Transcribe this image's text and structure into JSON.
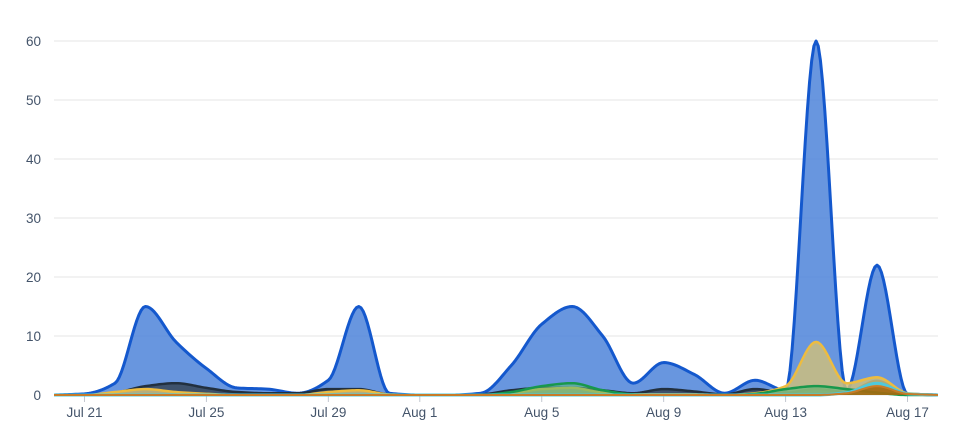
{
  "chart_data": {
    "type": "area",
    "title": "",
    "xlabel": "",
    "ylabel": "",
    "legend": "none",
    "grid": "horizontal",
    "background_color": "#ffffff",
    "gridline_color": "#e6e6e6",
    "tick_mark_color": "#c3c8d0",
    "axis_text_color": "#44546a",
    "ylim": [
      0,
      60
    ],
    "y_ticks": [
      0,
      10,
      20,
      30,
      40,
      50,
      60
    ],
    "x": [
      "Jul 20",
      "Jul 21",
      "Jul 22",
      "Jul 23",
      "Jul 24",
      "Jul 25",
      "Jul 26",
      "Jul 27",
      "Jul 28",
      "Jul 29",
      "Jul 30",
      "Jul 31",
      "Aug 1",
      "Aug 2",
      "Aug 3",
      "Aug 4",
      "Aug 5",
      "Aug 6",
      "Aug 7",
      "Aug 8",
      "Aug 9",
      "Aug 10",
      "Aug 11",
      "Aug 12",
      "Aug 13",
      "Aug 14",
      "Aug 15",
      "Aug 16",
      "Aug 17",
      "Aug 18"
    ],
    "x_tick_indices": [
      1,
      5,
      9,
      12,
      16,
      20,
      24,
      28
    ],
    "x_tick_labels": [
      "Jul 21",
      "Jul 25",
      "Jul 29",
      "Aug 1",
      "Aug 5",
      "Aug 9",
      "Aug 13",
      "Aug 17"
    ],
    "series": [
      {
        "name": "blue",
        "stroke": "#1458cd",
        "fill": "#4d84d9",
        "fill_opacity": 0.85,
        "stroke_width": 3,
        "values": [
          0,
          0.2,
          2,
          15,
          9,
          4.5,
          1.2,
          1,
          0.3,
          2.5,
          15,
          0.3,
          0,
          0,
          0.3,
          5,
          12,
          15,
          10,
          2,
          5.5,
          3.5,
          0.3,
          2.5,
          0.8,
          60,
          0.8,
          22,
          0.2,
          0
        ]
      },
      {
        "name": "dark-navy",
        "stroke": "#22303f",
        "fill": "#3a4a5f",
        "fill_opacity": 0.9,
        "stroke_width": 2.5,
        "values": [
          0,
          0,
          0.4,
          1.5,
          2,
          1.2,
          0.5,
          0.3,
          0.3,
          1,
          1,
          0.1,
          0,
          0,
          0.1,
          0.8,
          1.2,
          1.2,
          0.8,
          0.3,
          1,
          0.6,
          0.1,
          1,
          0.4,
          1,
          0.5,
          2.4,
          0.1,
          0
        ]
      },
      {
        "name": "gold",
        "stroke": "#edbc40",
        "fill": "#cdbe7e",
        "fill_opacity": 0.85,
        "stroke_width": 2.5,
        "values": [
          0,
          0,
          0.5,
          1,
          0.5,
          0.2,
          0,
          0,
          0,
          0.5,
          0.8,
          0.1,
          0,
          0,
          0,
          0.3,
          1,
          1.2,
          0.4,
          0.1,
          0.1,
          0.1,
          0,
          0.3,
          1.5,
          9,
          2,
          3,
          0.3,
          0
        ]
      },
      {
        "name": "green",
        "stroke": "#18984c",
        "fill": "#57b97a",
        "fill_opacity": 0.55,
        "stroke_width": 2.5,
        "values": [
          0,
          0,
          0,
          0,
          0,
          0,
          0,
          0,
          0,
          0,
          0,
          0,
          0,
          0,
          0,
          0.5,
          1.5,
          2,
          0.8,
          0.1,
          0,
          0,
          0,
          0.2,
          1,
          1.5,
          1,
          0.4,
          0,
          0
        ]
      },
      {
        "name": "cyan",
        "stroke": "#4ec9dd",
        "fill": "none",
        "fill_opacity": 0,
        "stroke_width": 3,
        "values": [
          0,
          0,
          0,
          0,
          0,
          0,
          0,
          0,
          0,
          0,
          0,
          0,
          0,
          0,
          0,
          0,
          0,
          0,
          0,
          0,
          0,
          0,
          0,
          0,
          0,
          0,
          0.4,
          2,
          0.2,
          0
        ]
      },
      {
        "name": "orange",
        "stroke": "#c87b28",
        "fill": "#a5690f",
        "fill_opacity": 0.9,
        "stroke_width": 2,
        "values": [
          0,
          0,
          0,
          0,
          0,
          0,
          0,
          0,
          0,
          0,
          0,
          0,
          0,
          0,
          0,
          0,
          0,
          0,
          0,
          0,
          0,
          0,
          0,
          0,
          0,
          0,
          0.3,
          1.5,
          0.2,
          0
        ]
      }
    ]
  }
}
